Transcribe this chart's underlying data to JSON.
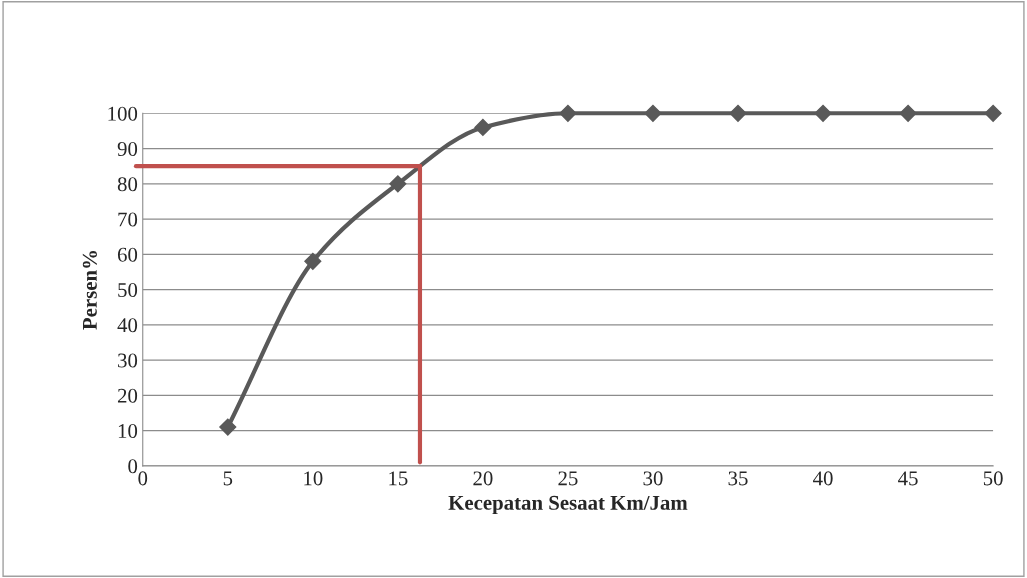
{
  "chart_data": {
    "type": "line",
    "xlabel": "Kecepatan Sesaat Km/Jam",
    "ylabel": "Persen%",
    "x": [
      5,
      10,
      15,
      20,
      25,
      30,
      35,
      40,
      45,
      50
    ],
    "series": [
      {
        "color": "#595959",
        "values": [
          11,
          58,
          80,
          96,
          100,
          100,
          100,
          100,
          100,
          100
        ]
      }
    ],
    "marker": "diamond",
    "line_style": "solid",
    "grid": "y",
    "legend": false,
    "xlim": [
      0,
      50
    ],
    "xticks": [
      0,
      5,
      10,
      15,
      20,
      25,
      30,
      35,
      40,
      45,
      50
    ],
    "ylim": [
      0,
      100
    ],
    "yticks": [
      0,
      10,
      20,
      30,
      40,
      50,
      60,
      70,
      80,
      90,
      100
    ],
    "ref_lines": [
      {
        "axis": "y",
        "value": 85,
        "color": "#c0504d"
      },
      {
        "axis": "x",
        "value": 16.3,
        "color": "#c0504d"
      }
    ]
  }
}
